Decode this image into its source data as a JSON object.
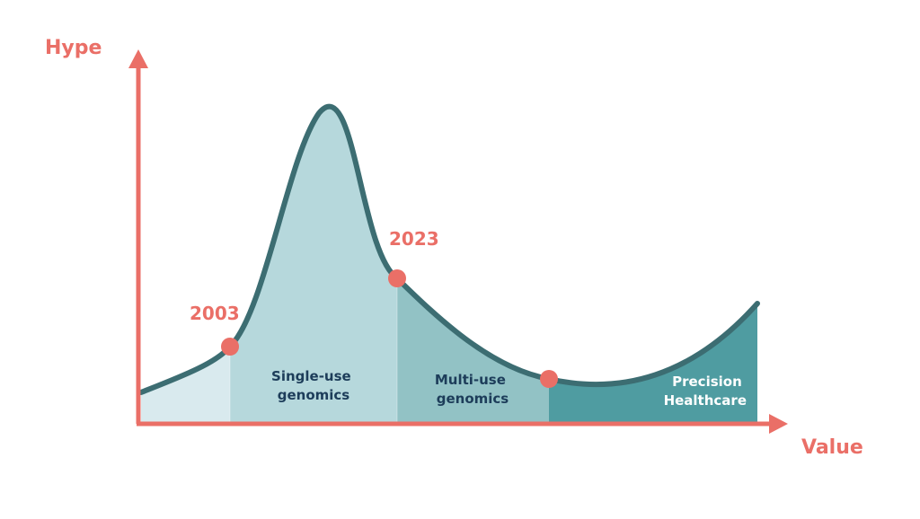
{
  "axes": {
    "y_label": "Hype",
    "x_label": "Value",
    "color": "#ea6f67"
  },
  "milestones": [
    {
      "label": "2003"
    },
    {
      "label": "2023"
    }
  ],
  "regions": [
    {
      "lines": [
        "",
        ""
      ],
      "fill": "#d9eaee",
      "text_color": "#1d3d5a"
    },
    {
      "lines": [
        "Single-use",
        "genomics"
      ],
      "fill": "#b6d8dc",
      "text_color": "#1d3d5a"
    },
    {
      "lines": [
        "Multi-use",
        "genomics"
      ],
      "fill": "#92c2c5",
      "text_color": "#1d3d5a"
    },
    {
      "lines": [
        "Precision",
        "Healthcare"
      ],
      "fill": "#4f9ca1",
      "text_color": "#ffffff"
    }
  ],
  "colors": {
    "curve": "#3c6d72",
    "marker": "#ea6f67"
  }
}
